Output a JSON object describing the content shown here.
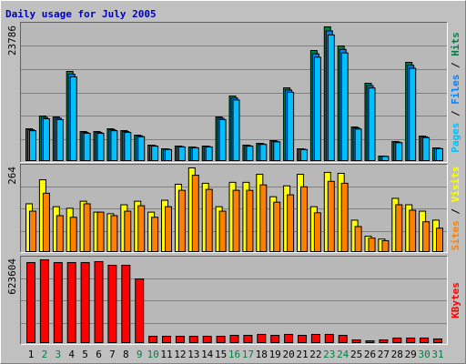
{
  "title": "Daily usage for July 2005",
  "chart_data": [
    {
      "type": "bar",
      "categories": [
        "1",
        "2",
        "3",
        "4",
        "5",
        "6",
        "7",
        "8",
        "9",
        "10",
        "11",
        "12",
        "13",
        "14",
        "15",
        "16",
        "17",
        "18",
        "19",
        "20",
        "21",
        "22",
        "23",
        "24",
        "25",
        "26",
        "27",
        "28",
        "29",
        "30",
        "31"
      ],
      "category_colors": [
        "#000000",
        "#008040",
        "#008040",
        "#000000",
        "#000000",
        "#000000",
        "#000000",
        "#000000",
        "#008040",
        "#008040",
        "#000000",
        "#000000",
        "#000000",
        "#000000",
        "#000000",
        "#008040",
        "#008040",
        "#000000",
        "#000000",
        "#000000",
        "#000000",
        "#000000",
        "#008040",
        "#008040",
        "#000000",
        "#000000",
        "#000000",
        "#000000",
        "#000000",
        "#008040",
        "#008040"
      ],
      "legend_separator": " / ",
      "ylim": [
        0,
        23786
      ],
      "yticks": [
        23786
      ],
      "series": [
        {
          "name": "Hits",
          "color": "#008040",
          "values": [
            5786,
            8036,
            7875,
            15911,
            5304,
            5304,
            5786,
            5464,
            4661,
            2893,
            2250,
            2732,
            2571,
            2732,
            7875,
            11571,
            2893,
            3214,
            3696,
            13018,
            2250,
            19607,
            23786,
            20411,
            6107,
            13821,
            964,
            3536,
            17518,
            4500,
            2411
          ]
        },
        {
          "name": "Files",
          "color": "#0080ff",
          "values": [
            5612,
            7795,
            7639,
            15434,
            5145,
            5145,
            5612,
            5300,
            4521,
            2806,
            2183,
            2650,
            2494,
            2650,
            7639,
            11224,
            2806,
            3118,
            3585,
            12627,
            2183,
            19019,
            23072,
            19799,
            5924,
            13406,
            935,
            3430,
            16992,
            4365,
            2339
          ]
        },
        {
          "name": "Pages",
          "color": "#00c0ff",
          "values": [
            5439,
            7554,
            7403,
            14956,
            4986,
            4986,
            5439,
            5136,
            4381,
            2719,
            2115,
            2568,
            2417,
            2568,
            7403,
            10877,
            2719,
            3021,
            3474,
            12237,
            2115,
            18431,
            22359,
            19186,
            5741,
            12992,
            906,
            3324,
            16467,
            4230,
            2266
          ]
        }
      ]
    },
    {
      "type": "bar",
      "legend_separator": " / ",
      "ylim": [
        0,
        264
      ],
      "yticks": [
        264
      ],
      "series": [
        {
          "name": "Visits",
          "color": "#ffff00",
          "values": [
            152,
            227,
            143,
            138,
            160,
            126,
            121,
            149,
            160,
            126,
            163,
            213,
            264,
            216,
            143,
            219,
            219,
            244,
            174,
            208,
            244,
            143,
            250,
            247,
            101,
            51,
            42,
            169,
            149,
            129,
            101
          ]
        },
        {
          "name": "Sites",
          "color": "#ff8000",
          "values": [
            129,
            185,
            115,
            110,
            152,
            126,
            115,
            129,
            146,
            110,
            143,
            194,
            241,
            197,
            129,
            194,
            194,
            211,
            157,
            180,
            205,
            124,
            222,
            216,
            81,
            45,
            37,
            149,
            132,
            96,
            76
          ]
        }
      ]
    },
    {
      "type": "bar",
      "ylim": [
        0,
        623604
      ],
      "yticks": [
        623604
      ],
      "series": [
        {
          "name": "KBytes",
          "color": "#ff0000",
          "values": [
            603000,
            623604,
            603000,
            603000,
            603000,
            610000,
            583000,
            583000,
            481000,
            54000,
            54000,
            54000,
            54000,
            54000,
            54000,
            61000,
            61000,
            68000,
            61000,
            68000,
            61000,
            68000,
            68000,
            61000,
            27000,
            20000,
            27000,
            41000,
            41000,
            41000,
            34000
          ]
        }
      ]
    }
  ]
}
